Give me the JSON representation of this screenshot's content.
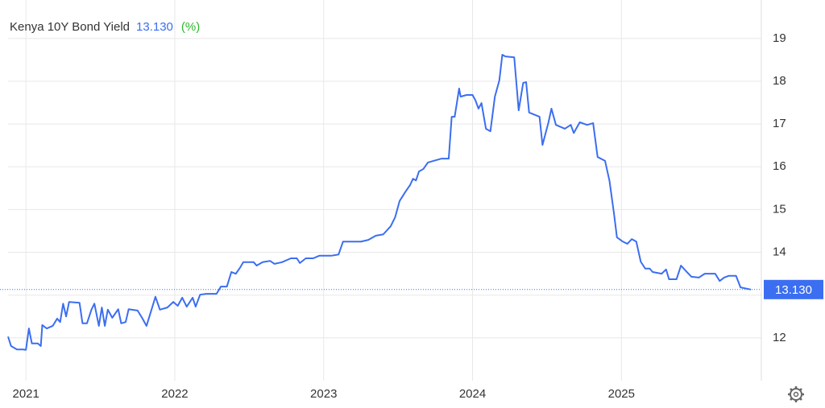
{
  "chart_data": {
    "type": "line",
    "series": [
      {
        "name": "Kenya 10Y Bond Yield",
        "color": "#3b6ef0",
        "values": [
          12.03,
          11.81,
          11.73,
          11.73,
          11.72,
          12.22,
          11.87,
          11.87,
          11.81,
          12.3,
          12.22,
          12.28,
          12.45,
          12.37,
          12.8,
          12.5,
          12.84,
          12.82,
          12.34,
          12.34,
          12.66,
          12.8,
          12.28,
          12.71,
          12.28,
          12.66,
          12.47,
          12.67,
          12.34,
          12.37,
          12.67,
          12.64,
          12.47,
          12.28,
          12.62,
          12.96,
          12.66,
          12.71,
          12.84,
          12.75,
          12.94,
          12.73,
          12.94,
          12.73,
          13.01,
          13.03,
          13.03,
          13.2,
          13.2,
          13.54,
          13.5,
          13.65,
          13.77,
          13.77,
          13.69,
          13.77,
          13.8,
          13.73,
          13.77,
          13.86,
          13.86,
          13.75,
          13.86,
          13.86,
          13.92,
          13.92,
          13.95,
          14.25,
          14.25,
          14.29,
          14.39,
          14.42,
          14.61,
          14.82,
          15.2,
          15.42,
          15.57,
          15.72,
          15.68,
          15.89,
          15.95,
          16.1,
          16.14,
          16.19,
          16.19,
          17.17,
          17.17,
          17.83,
          17.64,
          17.68,
          17.68,
          17.55,
          17.36,
          17.49,
          16.89,
          16.83,
          17.64,
          18.02,
          18.62,
          18.58,
          18.56,
          17.32,
          17.96,
          17.98,
          17.27,
          17.17,
          16.51,
          17.04,
          17.36,
          16.98,
          16.89,
          16.98,
          16.79,
          17.04,
          16.98,
          17.02,
          16.23,
          16.14,
          15.67,
          14.91,
          14.35,
          14.25,
          14.2,
          14.31,
          14.25,
          13.78,
          13.62,
          13.62,
          13.54,
          13.5,
          13.6,
          13.37,
          13.37,
          13.69,
          13.54,
          13.43,
          13.41,
          13.5,
          13.5,
          13.33,
          13.41,
          13.45,
          13.45,
          13.18,
          13.13
        ]
      }
    ],
    "x": [
      2020.88,
      2020.9,
      2020.94,
      2020.98,
      2021.0,
      2021.02,
      2021.04,
      2021.08,
      2021.1,
      2021.11,
      2021.14,
      2021.18,
      2021.21,
      2021.23,
      2021.25,
      2021.27,
      2021.29,
      2021.36,
      2021.38,
      2021.41,
      2021.44,
      2021.46,
      2021.49,
      2021.51,
      2021.53,
      2021.55,
      2021.58,
      2021.62,
      2021.64,
      2021.67,
      2021.69,
      2021.75,
      2021.78,
      2021.81,
      2021.84,
      2021.87,
      2021.9,
      2021.95,
      2021.99,
      2022.02,
      2022.05,
      2022.08,
      2022.12,
      2022.14,
      2022.17,
      2022.21,
      2022.28,
      2022.31,
      2022.35,
      2022.38,
      2022.41,
      2022.44,
      2022.46,
      2022.53,
      2022.55,
      2022.59,
      2022.64,
      2022.67,
      2022.72,
      2022.78,
      2022.82,
      2022.84,
      2022.88,
      2022.93,
      2022.97,
      2023.05,
      2023.1,
      2023.13,
      2023.25,
      2023.3,
      2023.35,
      2023.4,
      2023.45,
      2023.48,
      2023.51,
      2023.55,
      2023.58,
      2023.6,
      2023.62,
      2023.64,
      2023.67,
      2023.7,
      2023.74,
      2023.79,
      2023.84,
      2023.86,
      2023.88,
      2023.91,
      2023.92,
      2023.96,
      2024.0,
      2024.02,
      2024.04,
      2024.06,
      2024.09,
      2024.12,
      2024.15,
      2024.18,
      2024.2,
      2024.22,
      2024.28,
      2024.31,
      2024.34,
      2024.36,
      2024.38,
      2024.45,
      2024.47,
      2024.51,
      2024.53,
      2024.56,
      2024.62,
      2024.66,
      2024.68,
      2024.72,
      2024.77,
      2024.81,
      2024.84,
      2024.89,
      2024.92,
      2024.95,
      2024.97,
      2025.01,
      2025.04,
      2025.07,
      2025.1,
      2025.13,
      2025.16,
      2025.19,
      2025.21,
      2025.27,
      2025.3,
      2025.32,
      2025.37,
      2025.4,
      2025.44,
      2025.47,
      2025.52,
      2025.56,
      2025.63,
      2025.66,
      2025.69,
      2025.72,
      2025.77,
      2025.8,
      2025.87
    ],
    "last": {
      "value": 13.13,
      "label": "13.130"
    },
    "unit": "(%)",
    "unit_color": "#2eb82e",
    "xlim": [
      2020.88,
      2025.94
    ],
    "xticks": [
      2021,
      2022,
      2023,
      2024,
      2025
    ],
    "ylim": [
      11,
      19.9
    ],
    "yticks": [
      12,
      13,
      14,
      15,
      16,
      17,
      18,
      19
    ],
    "grid": true
  }
}
